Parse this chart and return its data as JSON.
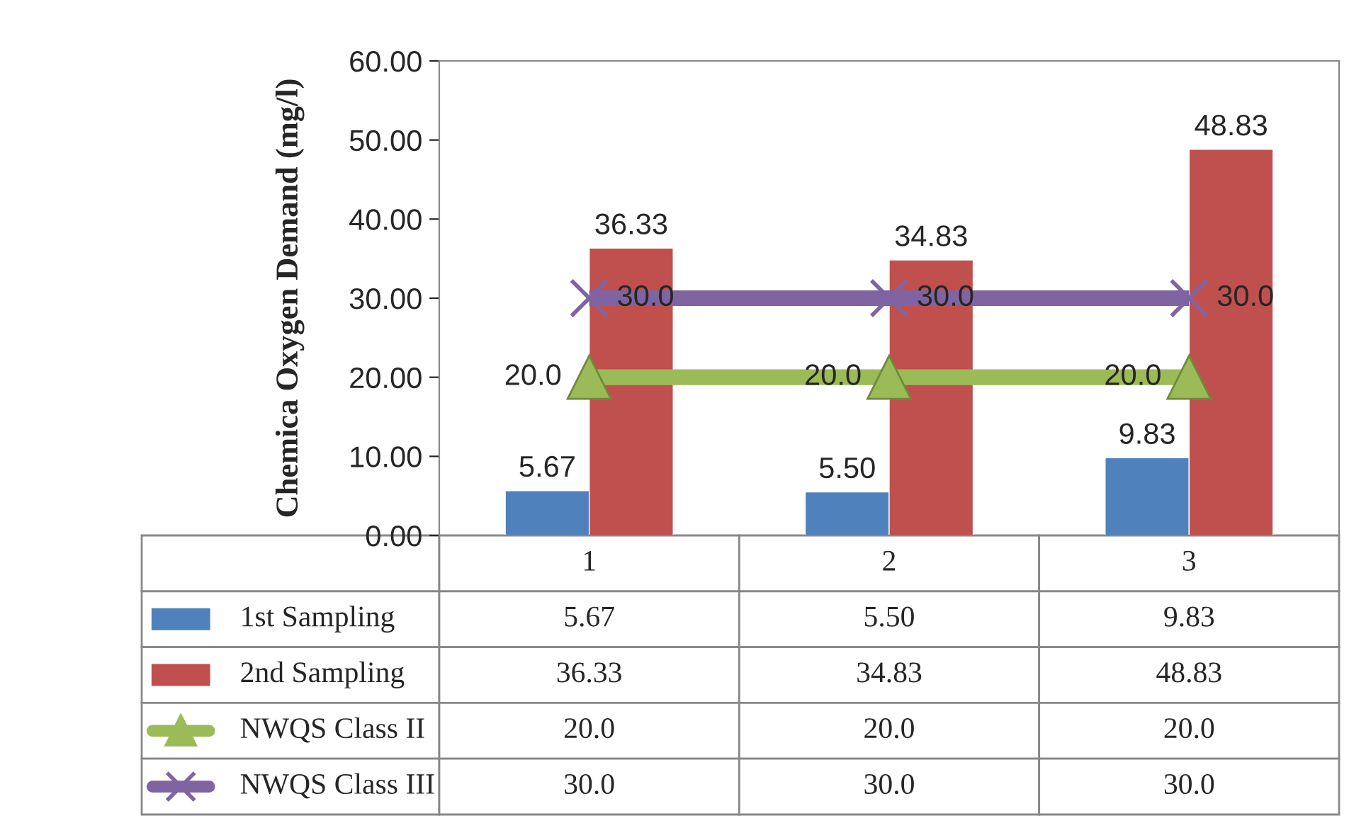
{
  "chart_data": {
    "type": "bar",
    "ylabel": "Chemica Oxygen Demand (mg/l)",
    "categories": [
      "1",
      "2",
      "3"
    ],
    "series": [
      {
        "name": "1st Sampling",
        "color": "#4f81bd",
        "values": [
          5.67,
          5.5,
          9.83
        ],
        "value_labels": [
          "5.67",
          "5.50",
          "9.83"
        ]
      },
      {
        "name": "2nd Sampling",
        "color": "#c0504d",
        "values": [
          36.33,
          34.83,
          48.83
        ],
        "value_labels": [
          "36.33",
          "34.83",
          "48.83"
        ]
      },
      {
        "name": "NWQS Class II",
        "type": "line",
        "marker": "triangle",
        "color": "#9bbb59",
        "values": [
          20.0,
          20.0,
          20.0
        ],
        "value_labels": [
          "20.0",
          "20.0",
          "20.0"
        ]
      },
      {
        "name": "NWQS Class III",
        "type": "line",
        "marker": "cross",
        "color": "#8064a2",
        "values": [
          30.0,
          30.0,
          30.0
        ],
        "value_labels": [
          "30.0",
          "30.0",
          "30.0"
        ]
      }
    ],
    "ylim": [
      0,
      60
    ],
    "yticks": [
      {
        "value": 0,
        "label": "0.00"
      },
      {
        "value": 10,
        "label": "10.00"
      },
      {
        "value": 20,
        "label": "20.00"
      },
      {
        "value": 30,
        "label": "30.00"
      },
      {
        "value": 40,
        "label": "40.00"
      },
      {
        "value": 50,
        "label": "50.00"
      },
      {
        "value": 60,
        "label": "60.00"
      }
    ],
    "tick_labels": "y",
    "grid": false,
    "legend": "bottom"
  }
}
